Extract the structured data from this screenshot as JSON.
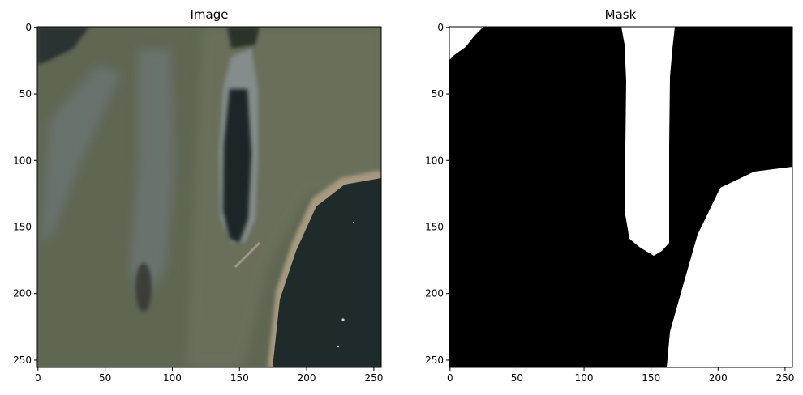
{
  "panels": [
    {
      "title": "Image",
      "kind": "photo",
      "x_ticks": [
        "0",
        "50",
        "100",
        "150",
        "200",
        "250"
      ],
      "y_ticks": [
        "0",
        "50",
        "100",
        "150",
        "200",
        "250"
      ],
      "colors": {
        "field": "#5f6652",
        "water": "#1f2a2a",
        "road": "#8c8f84",
        "bank": "#a79a80"
      }
    },
    {
      "title": "Mask",
      "kind": "binary-mask",
      "x_ticks": [
        "0",
        "50",
        "100",
        "150",
        "200",
        "250"
      ],
      "y_ticks": [
        "0",
        "50",
        "100",
        "150",
        "200",
        "250"
      ],
      "colors": {
        "background": "#000000",
        "foreground": "#ffffff"
      }
    }
  ]
}
